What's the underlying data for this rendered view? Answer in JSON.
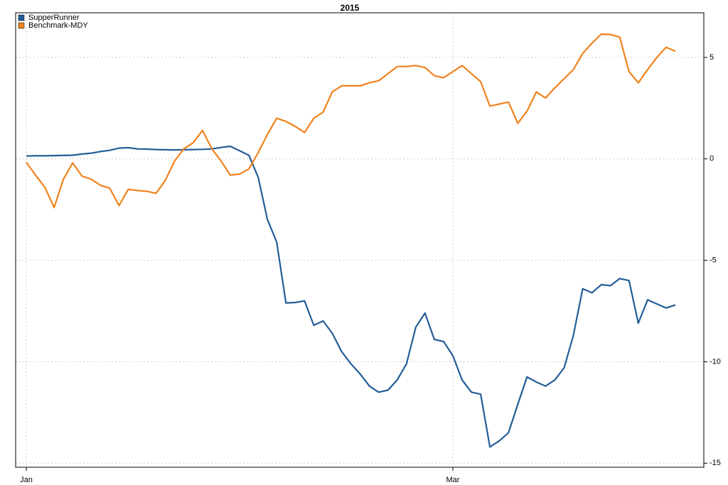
{
  "chart_data": {
    "type": "line",
    "title": "2015",
    "categories": [
      "Jan",
      null,
      null,
      null,
      null,
      null,
      null,
      null,
      null,
      null,
      null,
      null,
      null,
      null,
      null,
      null,
      null,
      null,
      null,
      null,
      null,
      null,
      null,
      null,
      null,
      null,
      null,
      null,
      null,
      null,
      null,
      null,
      null,
      null,
      null,
      null,
      null,
      null,
      null,
      null,
      null,
      null,
      null,
      null,
      null,
      null,
      "Mar",
      null,
      null,
      null,
      null,
      null,
      null,
      null,
      null,
      null,
      null,
      null,
      null,
      null,
      null,
      null,
      null,
      null,
      null,
      null,
      null,
      null,
      null,
      null,
      null
    ],
    "series": [
      {
        "name": "SupperRunner",
        "color": "#235d97",
        "values": [
          0.14,
          0.15,
          0.15,
          0.16,
          0.17,
          0.18,
          0.24,
          0.28,
          0.36,
          0.42,
          0.53,
          0.55,
          0.49,
          0.48,
          0.46,
          0.45,
          0.44,
          0.45,
          0.46,
          0.47,
          0.49,
          0.56,
          0.62,
          0.4,
          0.18,
          -0.9,
          -2.98,
          -4.1,
          -7.1,
          -7.08,
          -7.0,
          -8.2,
          -7.99,
          -8.6,
          -9.5,
          -10.1,
          -10.6,
          -11.2,
          -11.5,
          -11.4,
          -10.9,
          -10.1,
          -8.3,
          -7.6,
          -8.9,
          -9.0,
          -9.7,
          -10.9,
          -11.5,
          -11.6,
          -14.2,
          -13.9,
          -13.5,
          -12.1,
          -10.75,
          -11.0,
          -11.2,
          -10.9,
          -10.3,
          -8.7,
          -6.4,
          -6.6,
          -6.2,
          -6.25,
          -5.9,
          -6.0,
          -8.1,
          -6.95,
          -7.15,
          -7.35,
          -7.2
        ]
      },
      {
        "name": "Benchmark-MDY",
        "color": "#f0821e",
        "values": [
          -0.17,
          -0.8,
          -1.4,
          -2.4,
          -1.0,
          -0.2,
          -0.85,
          -1.0,
          -1.3,
          -1.45,
          -2.3,
          -1.5,
          -1.56,
          -1.6,
          -1.7,
          -1.05,
          -0.1,
          0.5,
          0.8,
          1.4,
          0.5,
          -0.1,
          -0.8,
          -0.75,
          -0.5,
          0.3,
          1.2,
          2.0,
          1.85,
          1.6,
          1.3,
          2.0,
          2.3,
          3.3,
          3.6,
          3.6,
          3.6,
          3.75,
          3.85,
          4.2,
          4.55,
          4.55,
          4.6,
          4.5,
          4.1,
          4.0,
          4.3,
          4.6,
          4.2,
          3.8,
          2.6,
          2.7,
          2.8,
          1.75,
          2.35,
          3.3,
          3.0,
          3.5,
          3.95,
          4.4,
          5.2,
          5.7,
          6.15,
          6.13,
          6.0,
          4.3,
          3.75,
          4.4,
          5.0,
          5.5,
          5.3
        ]
      }
    ],
    "ylim": [
      -15.2,
      7.2
    ],
    "yticks": [
      5,
      0,
      -5,
      -10,
      -15
    ],
    "grid": true,
    "legend": "top-left"
  }
}
